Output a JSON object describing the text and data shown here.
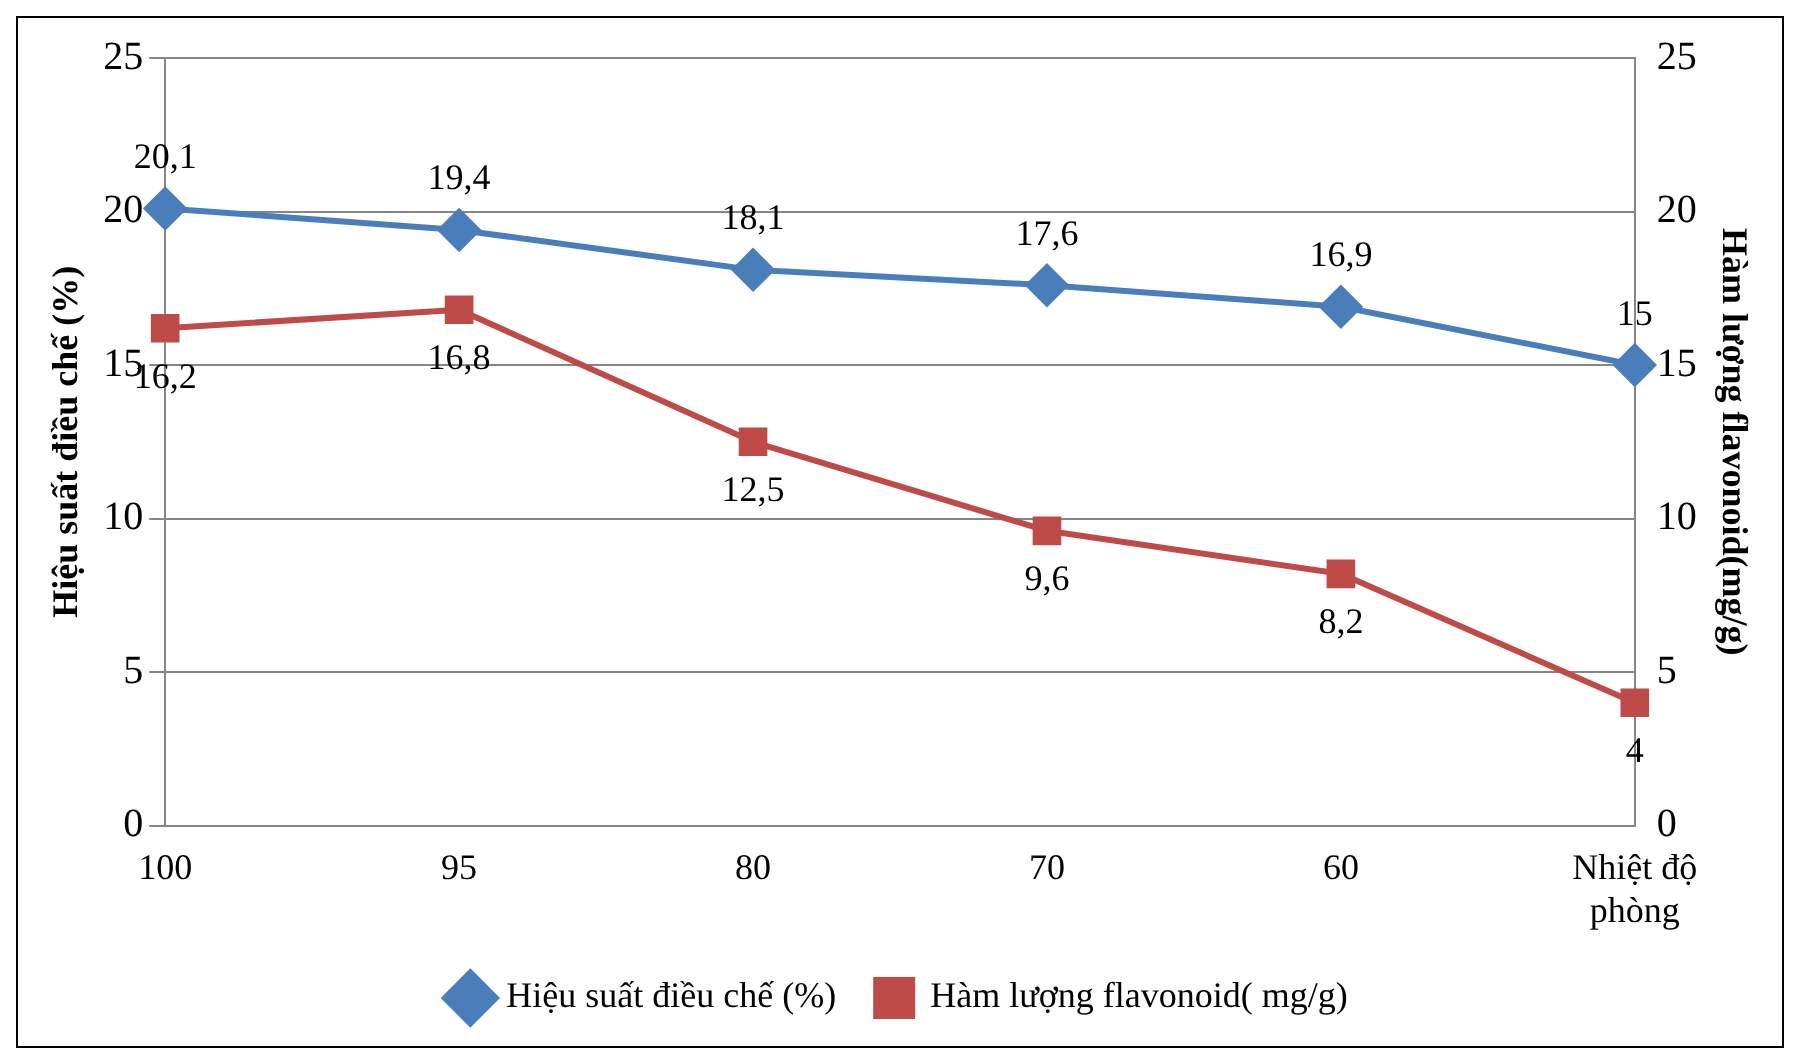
{
  "chart_data": {
    "type": "line",
    "categories": [
      "100",
      "95",
      "80",
      "70",
      "60",
      "Nhiệt độ phòng"
    ],
    "ylabel": "Hiệu suất điều chế (%)",
    "y2label": "Hàm lượng flavonoid(mg/g)",
    "ylim": [
      0,
      25
    ],
    "yticks": [
      0,
      5,
      10,
      15,
      20,
      25
    ],
    "y2lim": [
      0,
      25
    ],
    "y2ticks": [
      0,
      5,
      10,
      15,
      20,
      25
    ],
    "grid": "y",
    "legend": "bottom",
    "series": [
      {
        "name": "Hiệu suất điều chế (%)",
        "color": "#4a7ebb",
        "marker": "diamond",
        "values": [
          20.1,
          19.4,
          18.1,
          17.6,
          16.9,
          15
        ],
        "value_labels": [
          "20,1",
          "19,4",
          "18,1",
          "17,6",
          "16,9",
          "15"
        ]
      },
      {
        "name": "Hàm lượng flavonoid( mg/g)",
        "color": "#be4b48",
        "marker": "square",
        "axis": "y2",
        "values": [
          16.2,
          16.8,
          12.5,
          9.6,
          8.2,
          4
        ],
        "value_labels": [
          "16,2",
          "16,8",
          "12,5",
          "9,6",
          "8,2",
          "4"
        ]
      }
    ]
  }
}
